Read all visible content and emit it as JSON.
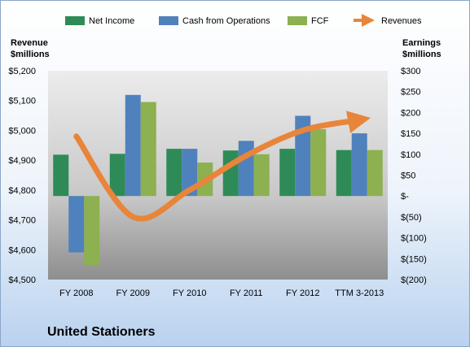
{
  "company": "United Stationers",
  "colors": {
    "net_income": "#2e8b57",
    "cash_from_operations": "#4f81bd",
    "fcf": "#8db050",
    "revenues": "#e8853a"
  },
  "chart_data": {
    "type": "bar",
    "categories": [
      "FY 2008",
      "FY 2009",
      "FY 2010",
      "FY 2011",
      "FY 2012",
      "TTM 3-2013"
    ],
    "series": [
      {
        "name": "Net Income",
        "axis": "right",
        "values": [
          99,
          101,
          113,
          109,
          113,
          110
        ]
      },
      {
        "name": "Cash from Operations",
        "axis": "right",
        "values": [
          -135,
          242,
          113,
          132,
          192,
          150
        ]
      },
      {
        "name": "FCF",
        "axis": "right",
        "values": [
          -165,
          225,
          80,
          100,
          160,
          110
        ]
      },
      {
        "name": "Revenues",
        "type": "line",
        "axis": "left",
        "values": [
          4980,
          4710,
          4800,
          4915,
          5000,
          5035
        ]
      }
    ],
    "left_axis": {
      "title_line1": "Revenue",
      "title_line2": "$millions",
      "min": 4500,
      "max": 5200,
      "ticks": [
        5200,
        5100,
        5000,
        4900,
        4800,
        4700,
        4600,
        4500
      ],
      "tick_labels": [
        "$5,200",
        "$5,100",
        "$5,000",
        "$4,900",
        "$4,800",
        "$4,700",
        "$4,600",
        "$4,500"
      ]
    },
    "right_axis": {
      "title_line1": "Earnings",
      "title_line2": "$millions",
      "min": -200,
      "max": 300,
      "ticks": [
        300,
        250,
        200,
        150,
        100,
        50,
        0,
        -50,
        -100,
        -150,
        -200
      ],
      "tick_labels": [
        "$300",
        "$250",
        "$200",
        "$150",
        "$100",
        "$50",
        "$-",
        "$(50)",
        "$(100)",
        "$(150)",
        "$(200)"
      ]
    },
    "legend_position": "top",
    "grid": false
  }
}
